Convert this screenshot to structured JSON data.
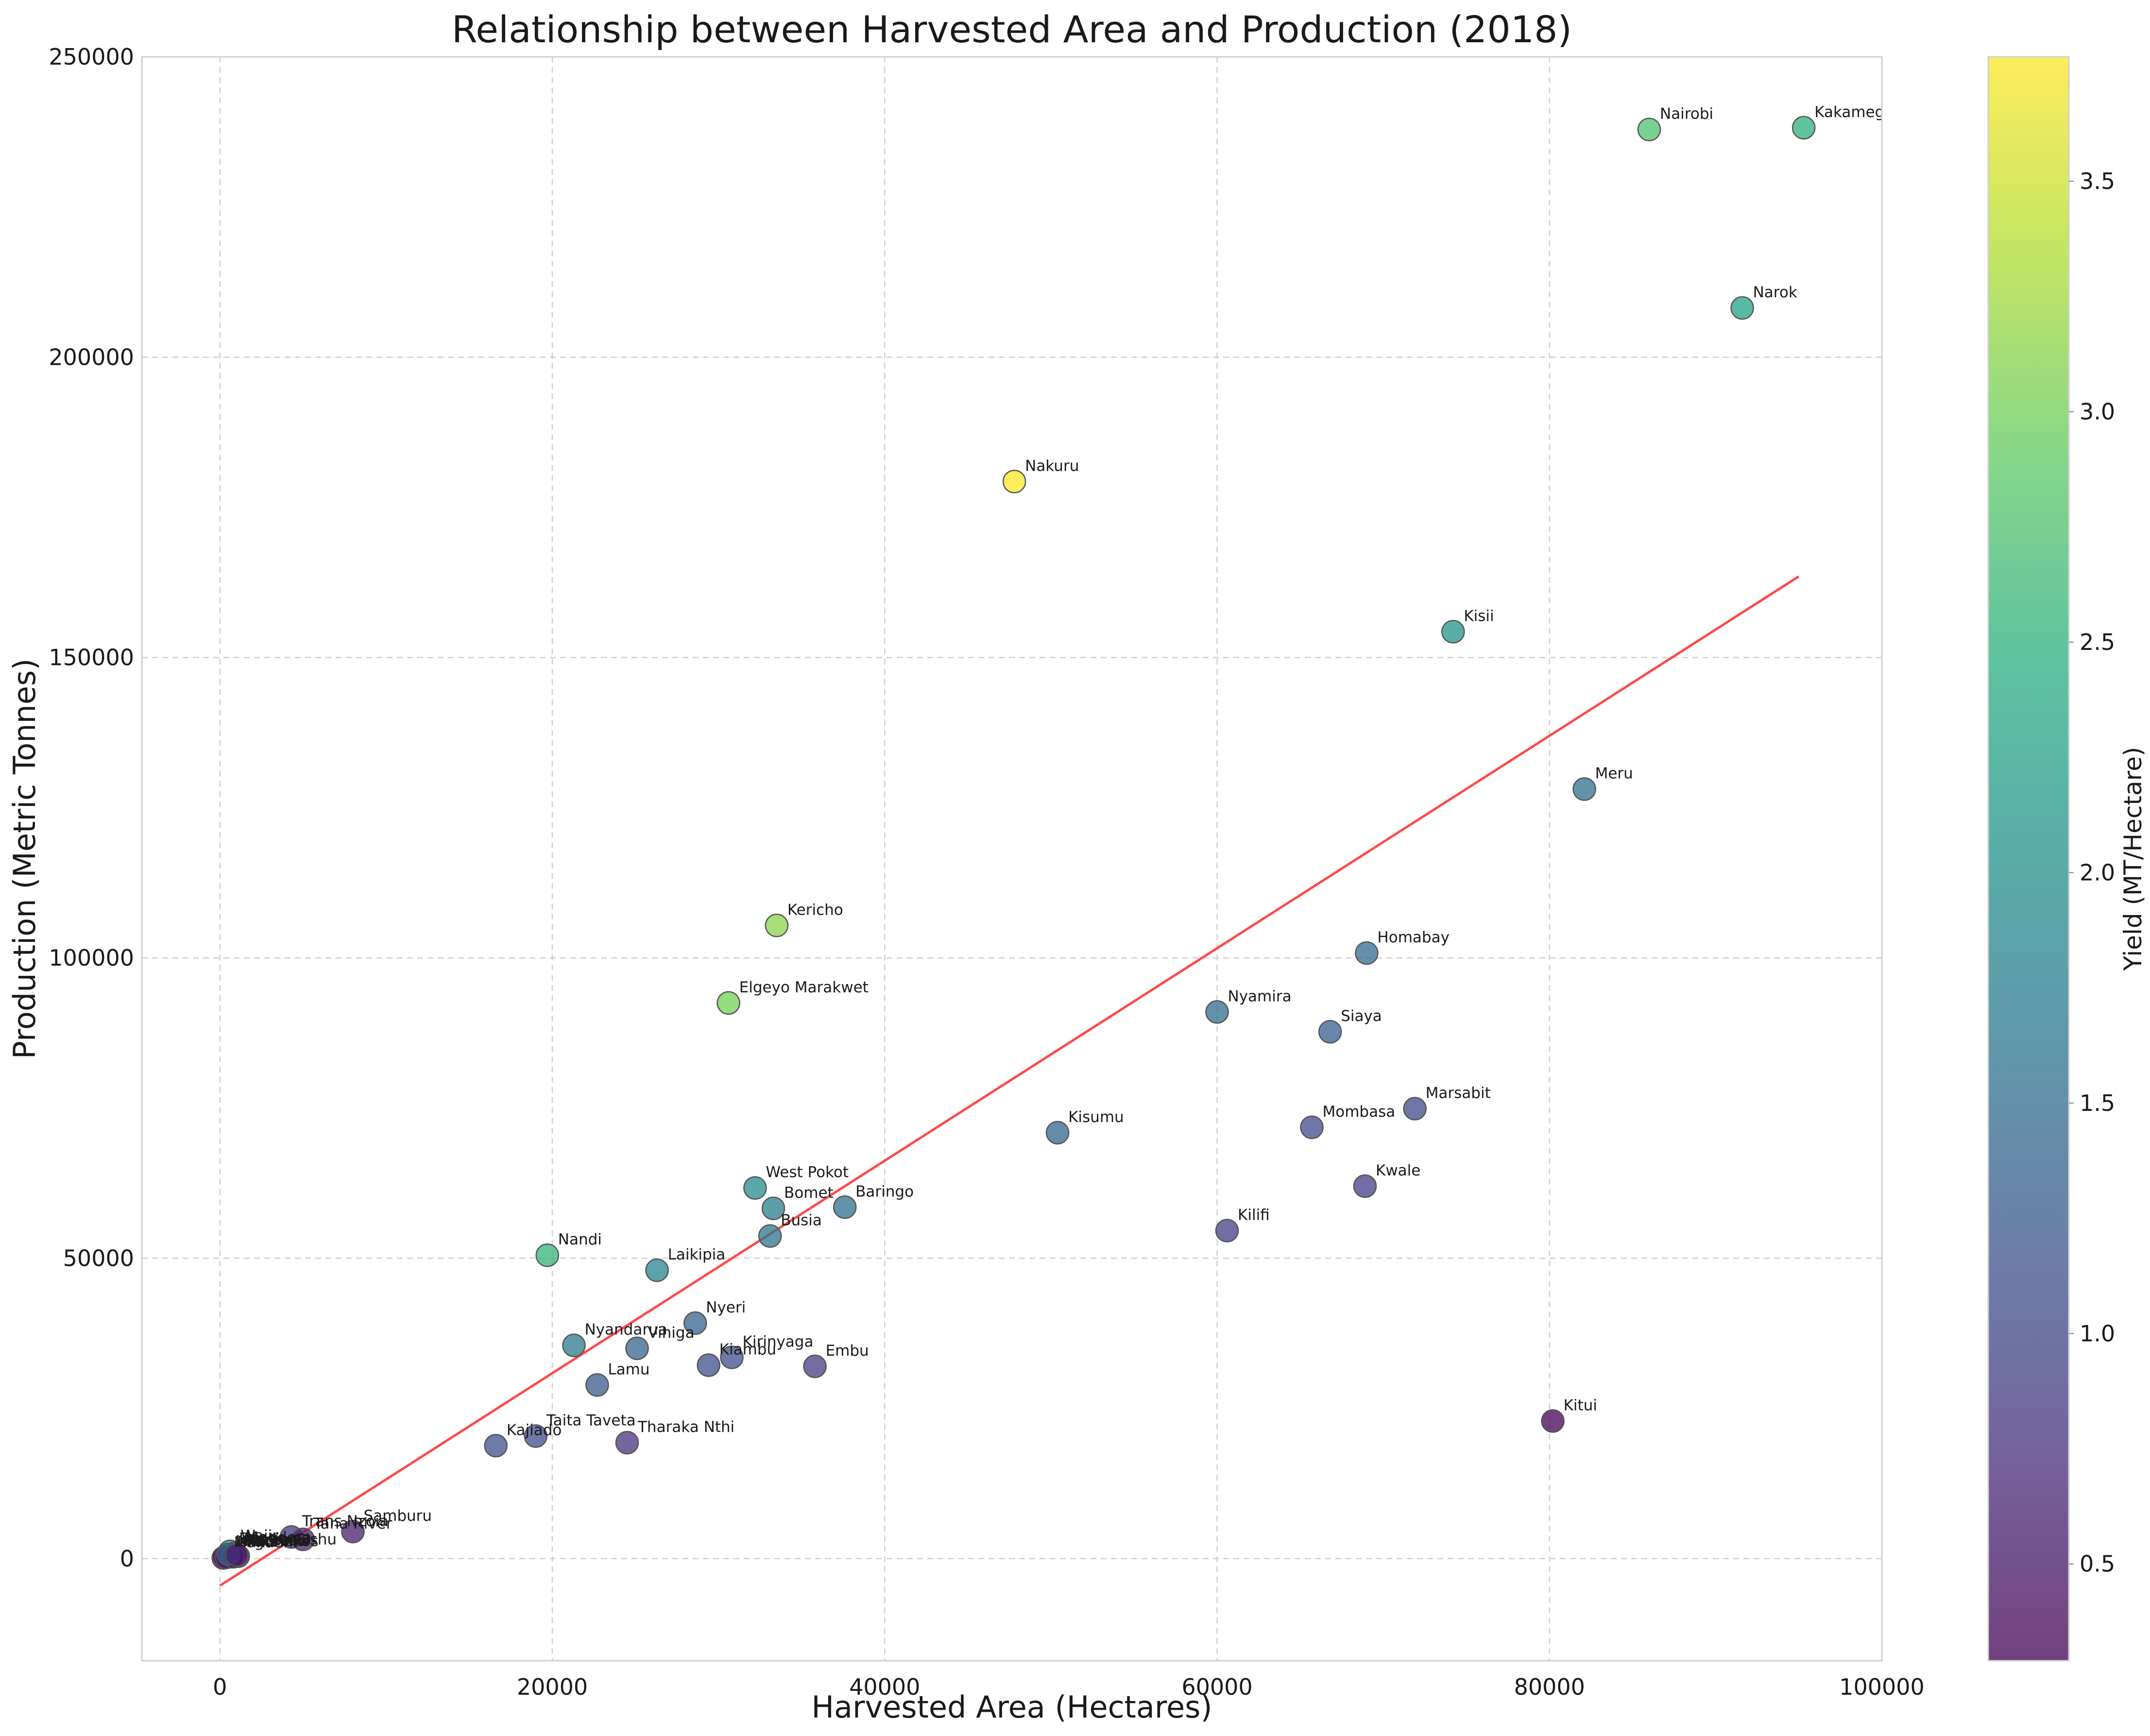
{
  "chart_data": {
    "type": "scatter",
    "title": "Relationship between Harvested Area and Production (2018)",
    "xlabel": "Harvested Area (Hectares)",
    "ylabel": "Production (Metric Tonnes)",
    "xlim": [
      -4700,
      100000
    ],
    "ylim": [
      -17000,
      250000
    ],
    "xticks": [
      0,
      20000,
      40000,
      60000,
      80000,
      100000
    ],
    "yticks": [
      0,
      50000,
      100000,
      150000,
      200000,
      250000
    ],
    "grid": true,
    "trendline": {
      "x": [
        0,
        95000
      ],
      "y": [
        -4500,
        163500
      ],
      "color": "#ff4a4a"
    },
    "colorbar": {
      "label": "Yield (MT/Hectare)",
      "range": [
        0.29,
        3.77
      ],
      "ticks": [
        0.5,
        1.0,
        1.5,
        2.0,
        2.5,
        3.0,
        3.5
      ]
    },
    "points": [
      {
        "name": "Kakamega",
        "x": 95300,
        "y": 238200,
        "yield": 2.5
      },
      {
        "name": "Nairobi",
        "x": 86000,
        "y": 237900,
        "yield": 2.77
      },
      {
        "name": "Narok",
        "x": 91600,
        "y": 208200,
        "yield": 2.27
      },
      {
        "name": "Nakuru",
        "x": 47800,
        "y": 179300,
        "yield": 3.75
      },
      {
        "name": "Kisii",
        "x": 74200,
        "y": 154300,
        "yield": 2.08
      },
      {
        "name": "Meru",
        "x": 82100,
        "y": 128100,
        "yield": 1.56
      },
      {
        "name": "Kericho",
        "x": 33500,
        "y": 105400,
        "yield": 3.15
      },
      {
        "name": "Homabay",
        "x": 69000,
        "y": 100800,
        "yield": 1.46
      },
      {
        "name": "Elgeyo Marakwet",
        "x": 30600,
        "y": 92500,
        "yield": 3.02
      },
      {
        "name": "Nyamira",
        "x": 60000,
        "y": 91000,
        "yield": 1.52
      },
      {
        "name": "Siaya",
        "x": 66800,
        "y": 87700,
        "yield": 1.31
      },
      {
        "name": "Marsabit",
        "x": 71900,
        "y": 74900,
        "yield": 1.04
      },
      {
        "name": "Mombasa",
        "x": 65700,
        "y": 71800,
        "yield": 1.09
      },
      {
        "name": "Kisumu",
        "x": 50400,
        "y": 70900,
        "yield": 1.41
      },
      {
        "name": "Kwale",
        "x": 68900,
        "y": 62000,
        "yield": 0.9
      },
      {
        "name": "West Pokot",
        "x": 32200,
        "y": 61700,
        "yield": 1.92
      },
      {
        "name": "Bomet",
        "x": 33300,
        "y": 58300,
        "yield": 1.75
      },
      {
        "name": "Baringo",
        "x": 37600,
        "y": 58500,
        "yield": 1.56
      },
      {
        "name": "Kilifi",
        "x": 60600,
        "y": 54600,
        "yield": 0.9
      },
      {
        "name": "Busia",
        "x": 33100,
        "y": 53700,
        "yield": 1.62
      },
      {
        "name": "Nandi",
        "x": 19700,
        "y": 50500,
        "yield": 2.56
      },
      {
        "name": "Laikipia",
        "x": 26300,
        "y": 48000,
        "yield": 1.83
      },
      {
        "name": "Nyeri",
        "x": 28600,
        "y": 39200,
        "yield": 1.37
      },
      {
        "name": "Nyandarua",
        "x": 21300,
        "y": 35500,
        "yield": 1.67
      },
      {
        "name": "Vihiga",
        "x": 25100,
        "y": 35000,
        "yield": 1.39
      },
      {
        "name": "Kirinyaga",
        "x": 30800,
        "y": 33500,
        "yield": 1.09
      },
      {
        "name": "Kiambu",
        "x": 29400,
        "y": 32200,
        "yield": 1.1
      },
      {
        "name": "Embu",
        "x": 35800,
        "y": 32000,
        "yield": 0.89
      },
      {
        "name": "Lamu",
        "x": 22700,
        "y": 28900,
        "yield": 1.27
      },
      {
        "name": "Kitui",
        "x": 80200,
        "y": 22900,
        "yield": 0.29
      },
      {
        "name": "Taita Taveta",
        "x": 19000,
        "y": 20400,
        "yield": 1.07
      },
      {
        "name": "Kajiado",
        "x": 16600,
        "y": 18800,
        "yield": 1.13
      },
      {
        "name": "Tharaka Nthi",
        "x": 24500,
        "y": 19300,
        "yield": 0.79
      },
      {
        "name": "Samburu",
        "x": 8000,
        "y": 4500,
        "yield": 0.56
      },
      {
        "name": "Trans Nzoia",
        "x": 4300,
        "y": 3600,
        "yield": 0.84
      },
      {
        "name": "Tana River",
        "x": 5000,
        "y": 3200,
        "yield": 0.64
      },
      {
        "name": "Wajir",
        "x": 600,
        "y": 1200,
        "yield": 1.9
      },
      {
        "name": "Mandera",
        "x": 900,
        "y": 900,
        "yield": 1.0
      },
      {
        "name": "Isiolo",
        "x": 300,
        "y": 300,
        "yield": 1.0
      },
      {
        "name": "Garissa",
        "x": 700,
        "y": 500,
        "yield": 0.71
      },
      {
        "name": "Turkana",
        "x": 1100,
        "y": 400,
        "yield": 0.36
      },
      {
        "name": "Makueni",
        "x": 200,
        "y": 100,
        "yield": 0.5
      },
      {
        "name": "Migori",
        "x": 400,
        "y": 200,
        "yield": 0.5
      },
      {
        "name": "Machakos",
        "x": 800,
        "y": 300,
        "yield": 0.38
      },
      {
        "name": "Bungoma",
        "x": 500,
        "y": 700,
        "yield": 1.4
      },
      {
        "name": "Uasin Gishu",
        "x": 1000,
        "y": 600,
        "yield": 0.6
      }
    ]
  }
}
